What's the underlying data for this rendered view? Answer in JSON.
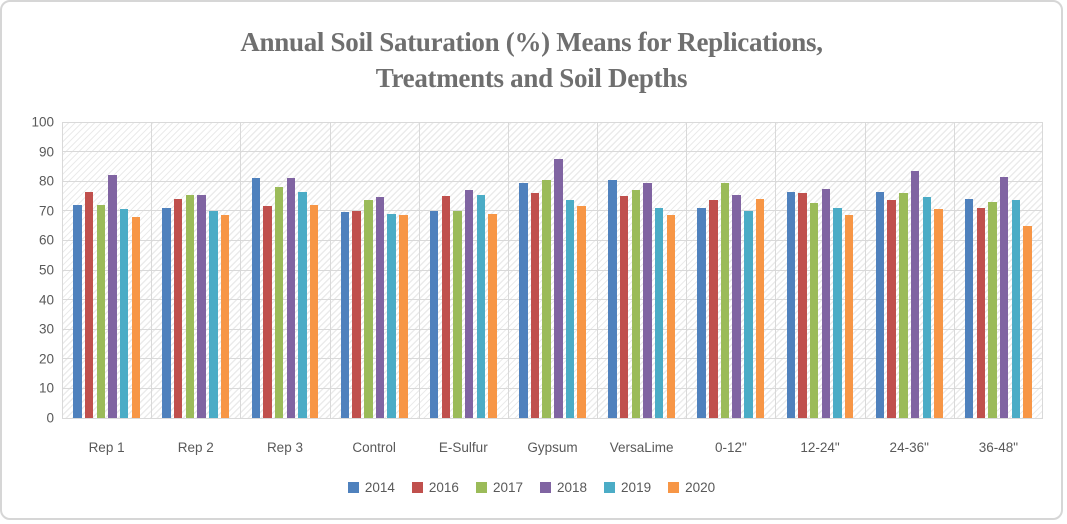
{
  "title": {
    "line1": "Annual Soil Saturation (%) Means for Replications,",
    "line2": "Treatments and Soil Depths"
  },
  "chart_data": {
    "type": "bar",
    "title": "Annual Soil Saturation (%) Means for Replications, Treatments and Soil Depths",
    "xlabel": "",
    "ylabel": "",
    "ylim": [
      0,
      100
    ],
    "ytick_step": 10,
    "grid": true,
    "plot_background": "light-diagonal-hatch",
    "legend_position": "bottom",
    "categories": [
      "Rep 1",
      "Rep 2",
      "Rep 3",
      "Control",
      "E-Sulfur",
      "Gypsum",
      "VersaLime",
      "0-12\"",
      "12-24\"",
      "24-36\"",
      "36-48\""
    ],
    "series": [
      {
        "name": "2014",
        "color": "#4F81BD",
        "values": [
          72,
          71,
          81,
          69.5,
          70,
          79.5,
          80.5,
          71,
          76.5,
          76.5,
          74
        ]
      },
      {
        "name": "2016",
        "color": "#C0504D",
        "values": [
          76.5,
          74,
          71.5,
          70,
          75,
          76,
          75,
          73.5,
          76,
          73.5,
          71
        ]
      },
      {
        "name": "2017",
        "color": "#9BBB59",
        "values": [
          72,
          75.5,
          78,
          73.5,
          70,
          80.5,
          77,
          79.5,
          72.5,
          76,
          73
        ]
      },
      {
        "name": "2018",
        "color": "#8064A2",
        "values": [
          82,
          75.5,
          81,
          74.5,
          77,
          87.5,
          79.5,
          75.5,
          77.5,
          83.5,
          81.5
        ]
      },
      {
        "name": "2019",
        "color": "#4BACC6",
        "values": [
          70.5,
          70,
          76.5,
          69,
          75.5,
          73.5,
          71,
          70,
          71,
          74.5,
          73.5
        ]
      },
      {
        "name": "2020",
        "color": "#F79646",
        "values": [
          68,
          68.5,
          72,
          68.5,
          69,
          71.5,
          68.5,
          74,
          68.5,
          70.5,
          65
        ]
      }
    ],
    "colors": {
      "gridline": "#d9d9d9",
      "axis_text": "#595959",
      "title_text": "#6f6f6f",
      "chart_border": "#d6d6d6"
    }
  }
}
